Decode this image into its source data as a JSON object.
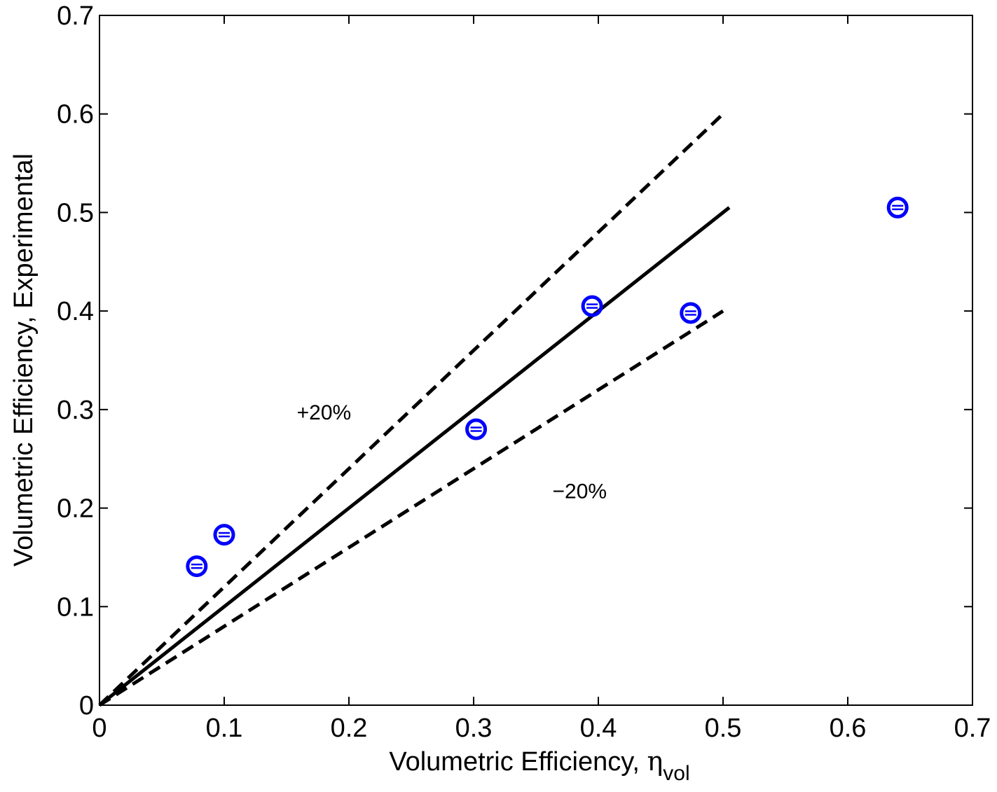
{
  "chart_data": {
    "type": "scatter",
    "xlabel": "Volumetric Efficiency, ",
    "xlabel_symbol": "η",
    "xlabel_subscript": "vol",
    "ylabel": "Volumetric Efficiency, Experimental",
    "xlim": [
      0,
      0.7
    ],
    "ylim": [
      0,
      0.7
    ],
    "xticks": [
      "0",
      "0.1",
      "0.2",
      "0.3",
      "0.4",
      "0.5",
      "0.6",
      "0.7"
    ],
    "yticks": [
      "0",
      "0.1",
      "0.2",
      "0.3",
      "0.4",
      "0.5",
      "0.6",
      "0.7"
    ],
    "grid": false,
    "series": [
      {
        "style": "points",
        "marker": "circle-with-errorbar",
        "color": "#0000ff",
        "x": [
          0.078,
          0.1,
          0.302,
          0.395,
          0.474,
          0.64
        ],
        "y": [
          0.141,
          0.173,
          0.28,
          0.405,
          0.398,
          0.505
        ]
      }
    ],
    "reference_lines": [
      {
        "style": "solid",
        "color": "#000000",
        "x": [
          0,
          0.505
        ],
        "y": [
          0,
          0.505
        ]
      },
      {
        "style": "dashed",
        "color": "#000000",
        "x": [
          0,
          0.5
        ],
        "y": [
          0,
          0.6
        ]
      },
      {
        "style": "dashed",
        "color": "#000000",
        "x": [
          0,
          0.5
        ],
        "y": [
          0,
          0.4
        ]
      }
    ],
    "annotations": [
      {
        "text": "+20%",
        "x": 0.18,
        "y": 0.29
      },
      {
        "text": "−20%",
        "x": 0.385,
        "y": 0.21
      }
    ]
  }
}
